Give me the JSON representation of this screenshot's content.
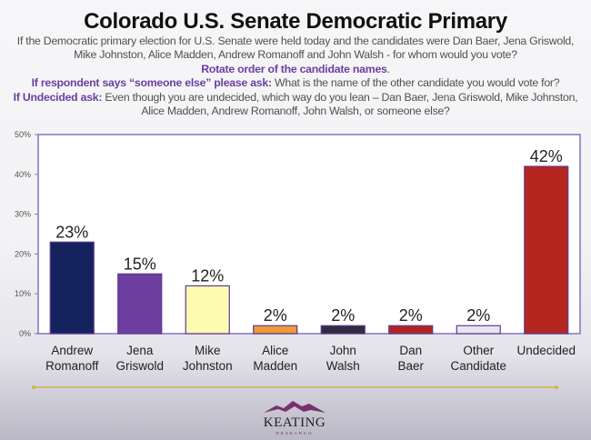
{
  "header": {
    "title": "Colorado U.S. Senate Democratic Primary",
    "question": "If the Democratic primary election for U.S. Senate were held today and the candidates were Dan Baer, Jena Griswold, Mike Johnston, Alice Madden, Andrew Romanoff and John Walsh - for whom would you vote?",
    "rotate_note": "Rotate order of the candidate names",
    "rotate_period": ".",
    "someone_else_prompt": "If respondent says “someone else” please ask:",
    "someone_else_text": " What is the name of the other candidate you would vote for?",
    "undecided_prompt": "If Undecided ask:",
    "undecided_text": " Even though you are undecided, which way do you lean – Dan Baer, Jena Griswold, Mike Johnston, Alice Madden, Andrew Romanoff, John Walsh, or someone else?"
  },
  "chart_data": {
    "type": "bar",
    "title": "Colorado U.S. Senate Democratic Primary",
    "xlabel": "",
    "ylabel": "",
    "ylim": [
      0,
      50
    ],
    "yticks": [
      "0%",
      "10%",
      "20%",
      "30%",
      "40%",
      "50%"
    ],
    "grid": false,
    "legend": "none",
    "categories": [
      [
        "Andrew",
        "Romanoff"
      ],
      [
        "Jena",
        "Griswold"
      ],
      [
        "Mike",
        "Johnston"
      ],
      [
        "Alice",
        "Madden"
      ],
      [
        "John",
        "Walsh"
      ],
      [
        "Dan",
        "Baer"
      ],
      [
        "Other",
        "Candidate"
      ],
      [
        "Undecided"
      ]
    ],
    "values": [
      23,
      15,
      12,
      2,
      2,
      2,
      2,
      42
    ],
    "value_labels": [
      "23%",
      "15%",
      "12%",
      "2%",
      "2%",
      "2%",
      "2%",
      "42%"
    ],
    "colors": [
      "#14235e",
      "#6e3fa0",
      "#fdfbb0",
      "#ee9a38",
      "#2e2d3d",
      "#b3241f",
      "#e6e6f0",
      "#b5261e"
    ]
  },
  "colors": {
    "accent_purple": "#6b3fa0",
    "axis": "#8a6fc0",
    "gold_line": "#d6b24a"
  },
  "logo": {
    "name": "KEATING",
    "subtitle": "RESEARCH"
  }
}
